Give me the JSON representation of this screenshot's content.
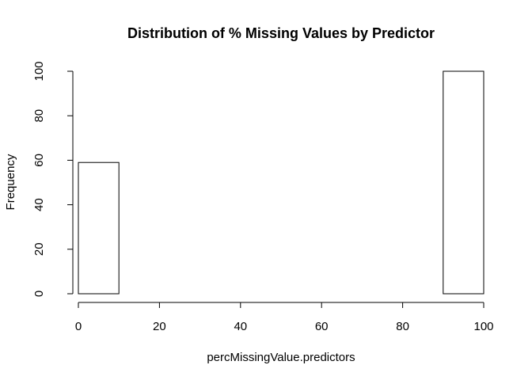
{
  "chart_data": {
    "type": "bar",
    "subtype": "histogram",
    "title": "Distribution of % Missing Values by Predictor",
    "xlabel": "percMissingValue.predictors",
    "ylabel": "Frequency",
    "bins": [
      {
        "from": 0,
        "to": 10,
        "count": 59
      },
      {
        "from": 10,
        "to": 20,
        "count": 0
      },
      {
        "from": 20,
        "to": 30,
        "count": 0
      },
      {
        "from": 30,
        "to": 40,
        "count": 0
      },
      {
        "from": 40,
        "to": 50,
        "count": 0
      },
      {
        "from": 50,
        "to": 60,
        "count": 0
      },
      {
        "from": 60,
        "to": 70,
        "count": 0
      },
      {
        "from": 70,
        "to": 80,
        "count": 0
      },
      {
        "from": 80,
        "to": 90,
        "count": 0
      },
      {
        "from": 90,
        "to": 100,
        "count": 100
      }
    ],
    "xlim": [
      0,
      100
    ],
    "ylim": [
      0,
      100
    ],
    "xticks": [
      0,
      20,
      40,
      60,
      80,
      100
    ],
    "yticks": [
      0,
      20,
      40,
      60,
      80,
      100
    ],
    "grid": false,
    "colors": {
      "bar_fill": "#ffffff",
      "bar_stroke": "#000000",
      "axis": "#000000",
      "text": "#000000"
    }
  }
}
